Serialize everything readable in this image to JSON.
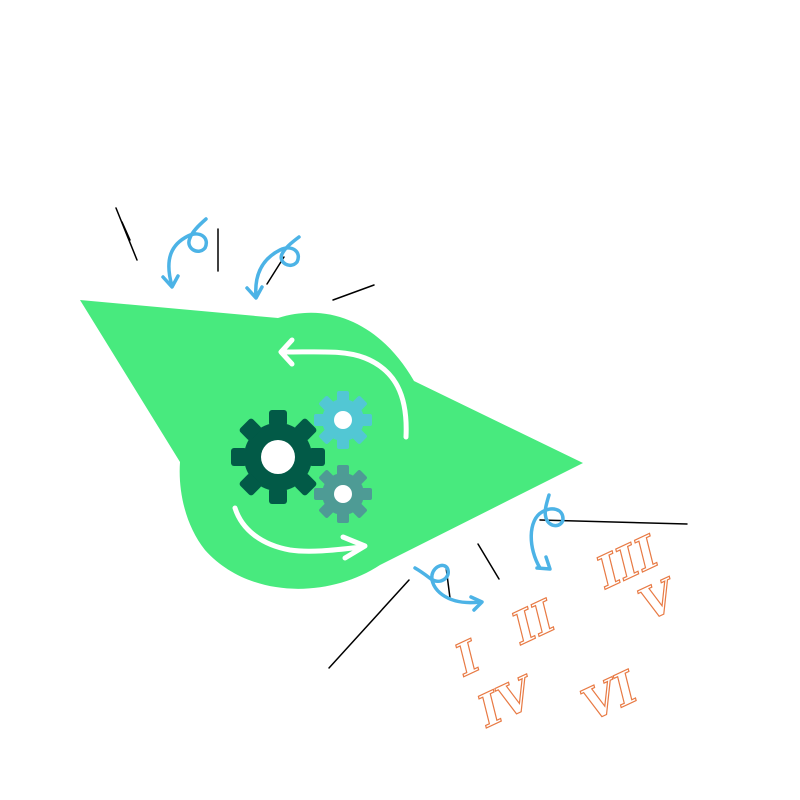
{
  "colors": {
    "background": "#ffffff",
    "shape": "#48ea7e",
    "gear_large": "#025a47",
    "gear_small_top": "#52c7d4",
    "gear_small_bottom": "#4e9b95",
    "gear_hole": "#ffffff",
    "cycle_arrows": "#ffffff",
    "curl_arrows": "#4cb3e6",
    "strokes": "#000000",
    "numerals_fill": "#ffffff",
    "numerals_stroke": "#e87a44"
  },
  "icons": {
    "center": "gear-cycle-icon",
    "curls": "curly-arrow-icon"
  },
  "numerals": [
    "I",
    "II",
    "III",
    "IV",
    "V",
    "VI"
  ]
}
